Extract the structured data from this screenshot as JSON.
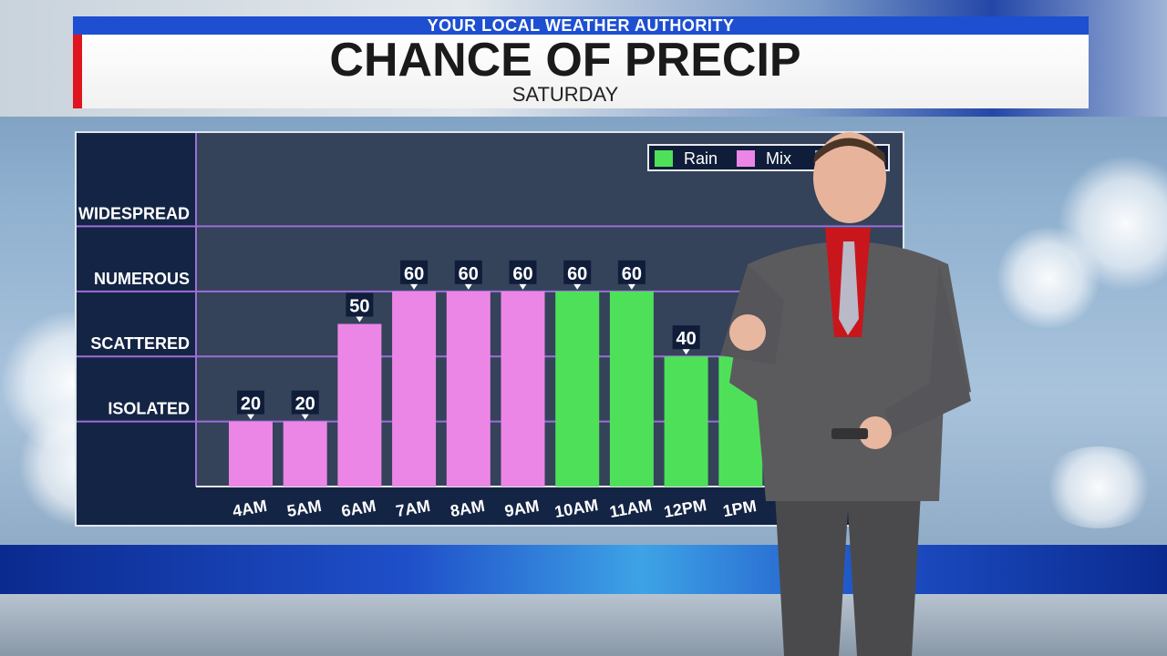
{
  "header": {
    "tagline": "YOUR LOCAL WEATHER AUTHORITY",
    "title": "CHANCE OF PRECIP",
    "subtitle": "SATURDAY"
  },
  "legend": [
    {
      "label": "Rain",
      "color": "#4fe05a"
    },
    {
      "label": "Mix",
      "color": "#ec86e6"
    },
    {
      "label": "",
      "color": "#6ab4ff"
    }
  ],
  "chart_data": {
    "type": "bar",
    "categories": [
      "4AM",
      "5AM",
      "6AM",
      "7AM",
      "8AM",
      "9AM",
      "10AM",
      "11AM",
      "12PM",
      "1PM"
    ],
    "values": [
      20,
      20,
      50,
      60,
      60,
      60,
      60,
      60,
      40,
      40
    ],
    "value_labels": [
      "20",
      "20",
      "50",
      "60",
      "60",
      "60",
      "60",
      "60",
      "40",
      null
    ],
    "precip_type": [
      "Mix",
      "Mix",
      "Mix",
      "Mix",
      "Mix",
      "Mix",
      "Rain",
      "Rain",
      "Rain",
      "Rain"
    ],
    "y_levels": [
      {
        "label": "ISOLATED",
        "value": 20
      },
      {
        "label": "SCATTERED",
        "value": 40
      },
      {
        "label": "NUMEROUS",
        "value": 60
      },
      {
        "label": "WIDESPREAD",
        "value": 80
      }
    ],
    "ylim": [
      0,
      100
    ],
    "grid": true,
    "legend_position": "top-right"
  },
  "colors": {
    "rain": "#4fe05a",
    "mix": "#ec86e6",
    "grid_line": "#9b6fd6",
    "header_blue": "#1e4fd0",
    "header_red": "#e0141e"
  }
}
